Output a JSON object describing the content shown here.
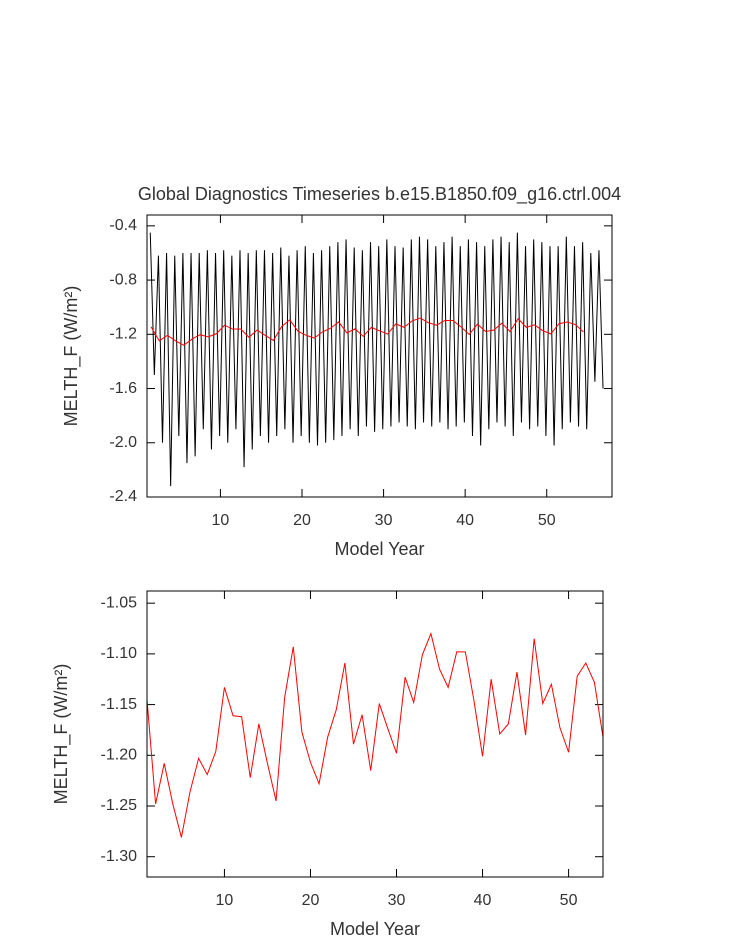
{
  "chart_data": [
    {
      "type": "line",
      "title": "Global Diagnostics Timeseries b.e15.B1850.f09_g16.ctrl.004",
      "xlabel": "Model Year",
      "ylabel": "MELTH_F (W/m²)",
      "xlim": [
        1,
        58
      ],
      "xticks": [
        10,
        20,
        30,
        40,
        50
      ],
      "ylim": [
        -2.4,
        -0.32
      ],
      "yticks": [
        -0.4,
        -0.8,
        -1.2,
        -1.6,
        {
          "value": -2,
          "label": "-2.0"
        },
        -2.4
      ],
      "series": [
        {
          "color": "#000000",
          "x": [
            1.4,
            1.9,
            2.4,
            2.9,
            3.4,
            3.9,
            4.4,
            4.9,
            5.4,
            5.9,
            6.4,
            6.9,
            7.4,
            7.9,
            8.4,
            8.9,
            9.4,
            9.9,
            10.4,
            10.9,
            11.4,
            11.9,
            12.4,
            12.9,
            13.4,
            13.9,
            14.4,
            14.9,
            15.4,
            15.9,
            16.4,
            16.9,
            17.4,
            17.9,
            18.4,
            18.9,
            19.4,
            19.9,
            20.4,
            20.9,
            21.4,
            21.9,
            22.4,
            22.9,
            23.4,
            23.9,
            24.4,
            24.9,
            25.4,
            25.9,
            26.4,
            26.9,
            27.4,
            27.9,
            28.4,
            28.9,
            29.4,
            29.9,
            30.4,
            30.9,
            31.4,
            31.9,
            32.4,
            32.9,
            33.4,
            33.9,
            34.4,
            34.9,
            35.4,
            35.9,
            36.4,
            36.9,
            37.4,
            37.9,
            38.4,
            38.9,
            39.4,
            39.9,
            40.4,
            40.9,
            41.4,
            41.9,
            42.4,
            42.9,
            43.4,
            43.9,
            44.4,
            44.9,
            45.4,
            45.9,
            46.4,
            46.9,
            47.4,
            47.9,
            48.4,
            48.9,
            49.4,
            49.9,
            50.4,
            50.9,
            51.4,
            51.9,
            52.4,
            52.9,
            53.4,
            53.9,
            54.4,
            54.9,
            55.4,
            55.9,
            56.4,
            56.9
          ],
          "values": [
            -0.45,
            -1.5,
            -0.62,
            -2.0,
            -0.6,
            -2.32,
            -0.62,
            -1.95,
            -0.6,
            -2.15,
            -0.6,
            -2.1,
            -0.6,
            -1.9,
            -0.58,
            -2.05,
            -0.6,
            -1.95,
            -0.58,
            -2.0,
            -0.62,
            -1.9,
            -0.58,
            -2.18,
            -0.6,
            -2.05,
            -0.58,
            -1.95,
            -0.58,
            -2.0,
            -0.6,
            -1.95,
            -0.56,
            -1.9,
            -0.62,
            -2.0,
            -0.58,
            -1.95,
            -0.55,
            -2.0,
            -0.6,
            -2.02,
            -0.58,
            -2.0,
            -0.55,
            -1.98,
            -0.52,
            -1.95,
            -0.5,
            -1.9,
            -0.56,
            -1.95,
            -0.58,
            -1.88,
            -0.52,
            -1.92,
            -0.55,
            -1.9,
            -0.5,
            -1.88,
            -0.55,
            -1.85,
            -0.56,
            -1.88,
            -0.5,
            -1.9,
            -0.48,
            -1.85,
            -0.5,
            -1.88,
            -0.55,
            -1.85,
            -0.52,
            -1.9,
            -0.48,
            -1.88,
            -0.55,
            -1.85,
            -0.5,
            -1.95,
            -0.52,
            -2.02,
            -0.55,
            -1.9,
            -0.5,
            -1.85,
            -0.48,
            -1.88,
            -0.52,
            -1.95,
            -0.45,
            -1.85,
            -0.55,
            -1.9,
            -0.5,
            -1.88,
            -0.52,
            -1.95,
            -0.55,
            -2.02,
            -0.55,
            -1.9,
            -0.48,
            -1.85,
            -0.55,
            -1.88,
            -0.52,
            -1.9,
            -0.6,
            -1.55,
            -0.58,
            -1.6
          ]
        },
        {
          "color": "#ff0000",
          "x": [
            1.5,
            2.5,
            3.5,
            4.5,
            5.5,
            6.5,
            7.5,
            8.5,
            9.5,
            10.5,
            11.5,
            12.5,
            13.5,
            14.5,
            15.5,
            16.5,
            17.5,
            18.5,
            19.5,
            20.5,
            21.5,
            22.5,
            23.5,
            24.5,
            25.5,
            26.5,
            27.5,
            28.5,
            29.5,
            30.5,
            31.5,
            32.5,
            33.5,
            34.5,
            35.5,
            36.5,
            37.5,
            38.5,
            39.5,
            40.5,
            41.5,
            42.5,
            43.5,
            44.5,
            45.5,
            46.5,
            47.5,
            48.5,
            49.5,
            50.5,
            51.5,
            52.5,
            53.5,
            54.5
          ],
          "values": [
            -1.145,
            -1.248,
            -1.208,
            -1.248,
            -1.281,
            -1.236,
            -1.203,
            -1.219,
            -1.196,
            -1.133,
            -1.161,
            -1.162,
            -1.222,
            -1.169,
            -1.208,
            -1.245,
            -1.143,
            -1.093,
            -1.177,
            -1.207,
            -1.228,
            -1.182,
            -1.155,
            -1.109,
            -1.189,
            -1.16,
            -1.215,
            -1.149,
            -1.174,
            -1.198,
            -1.123,
            -1.148,
            -1.101,
            -1.08,
            -1.115,
            -1.133,
            -1.098,
            -1.098,
            -1.146,
            -1.201,
            -1.125,
            -1.179,
            -1.169,
            -1.118,
            -1.18,
            -1.085,
            -1.149,
            -1.13,
            -1.173,
            -1.197,
            -1.122,
            -1.109,
            -1.128,
            -1.182
          ]
        }
      ]
    },
    {
      "type": "line",
      "xlabel": "Model Year",
      "ylabel": "MELTH_F (W/m²)",
      "xlim": [
        1,
        54
      ],
      "xticks": [
        10,
        20,
        30,
        40,
        50
      ],
      "ylim": [
        -1.32,
        -1.038
      ],
      "yticks": [
        -1.05,
        {
          "value": -1.1,
          "label": "-1.10"
        },
        -1.15,
        {
          "value": -1.2,
          "label": "-1.20"
        },
        -1.25,
        {
          "value": -1.3,
          "label": "-1.30"
        }
      ],
      "series": [
        {
          "color": "#ff0000",
          "x": [
            1,
            2,
            3,
            4,
            5,
            6,
            7,
            8,
            9,
            10,
            11,
            12,
            13,
            14,
            15,
            16,
            17,
            18,
            19,
            20,
            21,
            22,
            23,
            24,
            25,
            26,
            27,
            28,
            29,
            30,
            31,
            32,
            33,
            34,
            35,
            36,
            37,
            38,
            39,
            40,
            41,
            42,
            43,
            44,
            45,
            46,
            47,
            48,
            49,
            50,
            51,
            52,
            53,
            54
          ],
          "values": [
            -1.145,
            -1.248,
            -1.208,
            -1.248,
            -1.281,
            -1.236,
            -1.203,
            -1.219,
            -1.196,
            -1.133,
            -1.161,
            -1.162,
            -1.222,
            -1.169,
            -1.208,
            -1.245,
            -1.143,
            -1.093,
            -1.177,
            -1.207,
            -1.228,
            -1.182,
            -1.155,
            -1.109,
            -1.189,
            -1.16,
            -1.215,
            -1.149,
            -1.174,
            -1.198,
            -1.123,
            -1.148,
            -1.101,
            -1.08,
            -1.115,
            -1.133,
            -1.098,
            -1.098,
            -1.146,
            -1.201,
            -1.125,
            -1.179,
            -1.169,
            -1.118,
            -1.18,
            -1.085,
            -1.149,
            -1.13,
            -1.173,
            -1.197,
            -1.122,
            -1.109,
            -1.128,
            -1.182
          ]
        }
      ]
    }
  ]
}
